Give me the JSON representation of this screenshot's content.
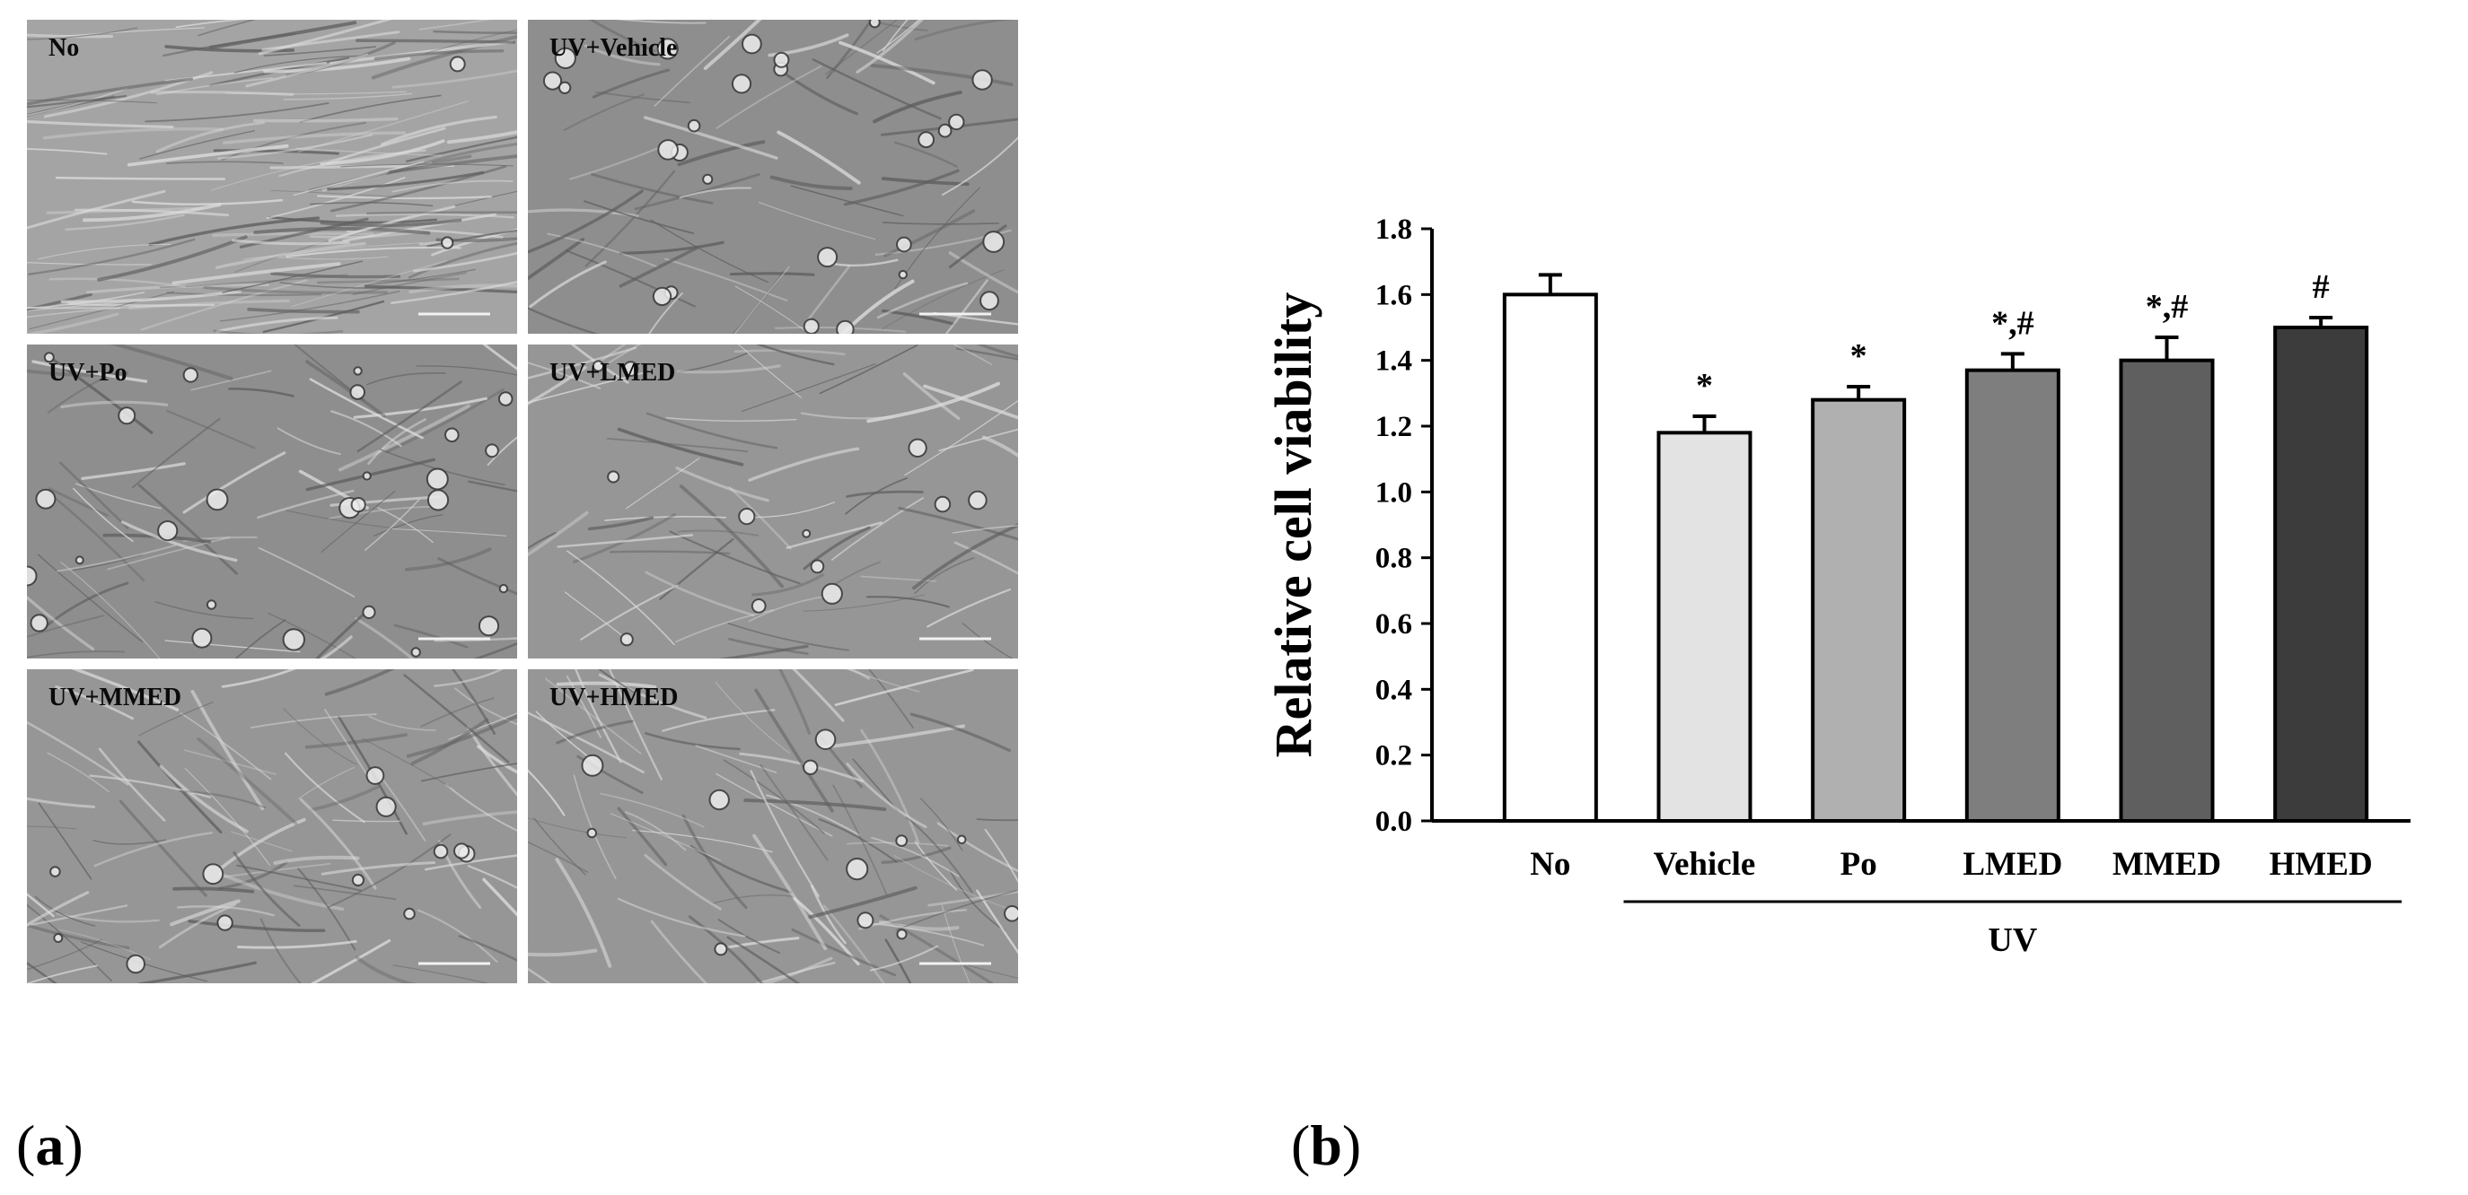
{
  "panel_a": {
    "letter": "a",
    "tiles": [
      {
        "label": "No",
        "texture": "confluent"
      },
      {
        "label": "UV+Vehicle",
        "texture": "damaged"
      },
      {
        "label": "UV+Po",
        "texture": "damaged"
      },
      {
        "label": "UV+LMED",
        "texture": "partial"
      },
      {
        "label": "UV+MMED",
        "texture": "recovering"
      },
      {
        "label": "UV+HMED",
        "texture": "recovering"
      }
    ]
  },
  "panel_b": {
    "letter": "b"
  },
  "chart_data": {
    "type": "bar",
    "categories": [
      "No",
      "Vehicle",
      "Po",
      "LMED",
      "MMED",
      "HMED"
    ],
    "values": [
      1.6,
      1.18,
      1.28,
      1.37,
      1.4,
      1.5
    ],
    "errors": [
      0.06,
      0.05,
      0.04,
      0.05,
      0.07,
      0.03
    ],
    "significance": [
      "",
      "*",
      "*",
      "*,#",
      "*,#",
      "#"
    ],
    "bar_colors": [
      "#ffffff",
      "#e3e3e3",
      "#b0b0b0",
      "#7e7e7e",
      "#5f5f5f",
      "#3c3c3c"
    ],
    "ylabel": "Relative cell viability",
    "ylim": [
      0.0,
      1.8
    ],
    "yticks": [
      "0.0",
      "0.2",
      "0.4",
      "0.6",
      "0.8",
      "1.0",
      "1.2",
      "1.4",
      "1.6",
      "1.8"
    ],
    "group_label": "UV",
    "group_members": [
      "Vehicle",
      "Po",
      "LMED",
      "MMED",
      "HMED"
    ],
    "grid": false
  }
}
